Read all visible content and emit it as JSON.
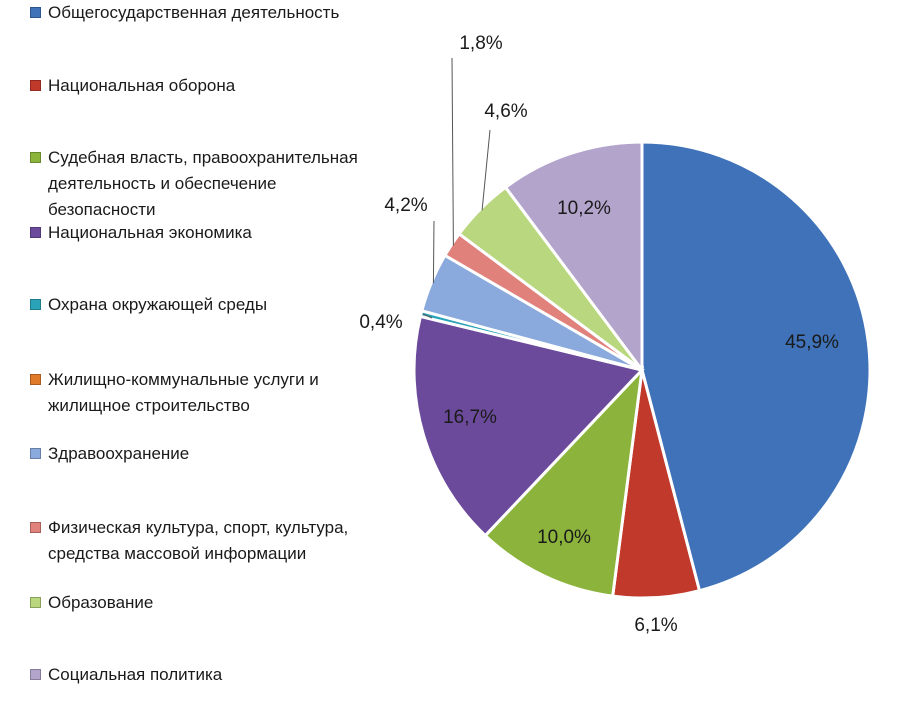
{
  "chart_data": {
    "type": "pie",
    "title": "",
    "slices": [
      {
        "label": "Общегосударственная деятельность",
        "value": 45.9,
        "display": "45,9%",
        "color": "#3f72b8"
      },
      {
        "label": "Национальная оборона",
        "value": 6.1,
        "display": "6,1%",
        "color": "#c0392b"
      },
      {
        "label": "Судебная власть, правоохранительная деятельность и обеспечение безопасности",
        "value": 10.0,
        "display": "10,0%",
        "color": "#8cb43c"
      },
      {
        "label": "Национальная экономика",
        "value": 16.7,
        "display": "16,7%",
        "color": "#6b4a9c"
      },
      {
        "label": "Охрана окружающей среды",
        "value": 0.4,
        "display": "0,4%",
        "color": "#2aa3b8"
      },
      {
        "label": "Жилищно-коммунальные услуги и жилищное строительство",
        "value": 0.0,
        "display": "",
        "color": "#e07b2a"
      },
      {
        "label": "Здравоохранение",
        "value": 4.2,
        "display": "4,2%",
        "color": "#8aa9dc"
      },
      {
        "label": "Физическая культура, спорт, культура, средства массовой информации",
        "value": 1.8,
        "display": "1,8%",
        "color": "#e0817c"
      },
      {
        "label": "Образование",
        "value": 4.6,
        "display": "4,6%",
        "color": "#b9d77e"
      },
      {
        "label": "Социальная политика",
        "value": 10.2,
        "display": "10,2%",
        "color": "#b3a4cc"
      }
    ],
    "legend": {
      "position": "left",
      "entries": [
        "Общегосударственная деятельность",
        "Национальная оборона",
        "Судебная власть, правоохранительная\nдеятельность и обеспечение\nбезопасности",
        "Национальная экономика",
        "Охрана окружающей среды",
        "Жилищно-коммунальные услуги и\nжилищное строительство",
        "Здравоохранение",
        "Физическая культура, спорт, культура,\nсредства массовой информации",
        "Образование",
        "Социальная политика"
      ]
    }
  }
}
